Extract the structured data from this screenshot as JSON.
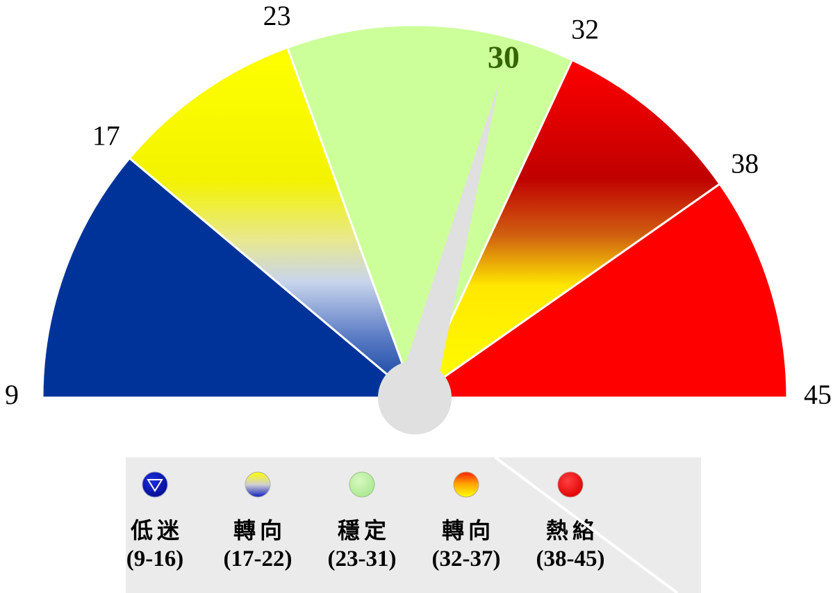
{
  "chart_data": {
    "type": "gauge",
    "min": 9,
    "max": 45,
    "value": 30,
    "value_label": "30",
    "tick_labels": [
      "9",
      "17",
      "23",
      "32",
      "38",
      "45"
    ],
    "bands": [
      {
        "from": 9,
        "to": 17,
        "fill": "blue"
      },
      {
        "from": 17,
        "to": 23,
        "fill": "yellow-blue"
      },
      {
        "from": 23,
        "to": 32,
        "fill": "green"
      },
      {
        "from": 32,
        "to": 38,
        "fill": "red-yellow"
      },
      {
        "from": 38,
        "to": 45,
        "fill": "red"
      }
    ],
    "colors": {
      "blue": "#003399",
      "yellow": "#ffff00",
      "green": "#ccff99",
      "dark_red": "#c00000",
      "red": "#ff0000",
      "needle": "#e0e0e0",
      "value_text": "#336600"
    }
  },
  "legend": [
    {
      "name": "低迷",
      "range": "(9-16)",
      "icon": "blue-down-triangle-icon"
    },
    {
      "name": "轉向",
      "range": "(17-22)",
      "icon": "yellow-blue-circle-icon"
    },
    {
      "name": "穩定",
      "range": "(23-31)",
      "icon": "green-circle-icon"
    },
    {
      "name": "轉向",
      "range": "(32-37)",
      "icon": "red-yellow-circle-icon"
    },
    {
      "name": "熱絡",
      "range": "(38-45)",
      "icon": "red-circle-icon"
    }
  ]
}
